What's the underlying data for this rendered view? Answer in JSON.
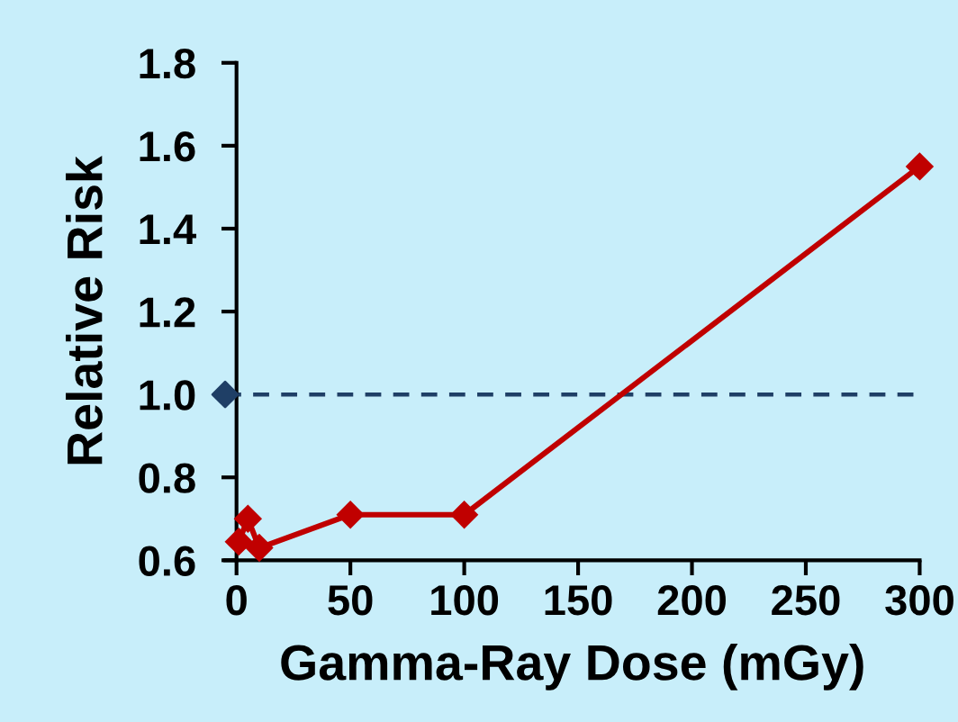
{
  "chart_data": {
    "type": "line",
    "xlabel": "Gamma-Ray Dose (mGy)",
    "ylabel": "Relative Risk",
    "series": [
      {
        "color": "#c00000",
        "x": [
          1,
          5,
          10,
          50,
          100,
          300
        ],
        "values": [
          0.645,
          0.7,
          0.63,
          0.71,
          0.71,
          1.55
        ],
        "marker": "diamond"
      },
      {
        "type": "scatter",
        "color": "#1f3f66",
        "x": [
          -5
        ],
        "values": [
          1.0
        ],
        "marker": "diamond"
      }
    ],
    "ref_lines": [
      {
        "axis": "y",
        "value": 1.0,
        "color": "#1f3f66",
        "line_style": "dashed"
      }
    ],
    "xlim": [
      -5,
      300
    ],
    "xticks": [
      0,
      50,
      100,
      150,
      200,
      250,
      300
    ],
    "ylim": [
      0.6,
      1.8
    ],
    "yticks": [
      0.6,
      0.8,
      {
        "value": 1,
        "label": "1.0"
      },
      1.2,
      1.4,
      1.6,
      1.8
    ],
    "grid": false,
    "legend": false
  }
}
